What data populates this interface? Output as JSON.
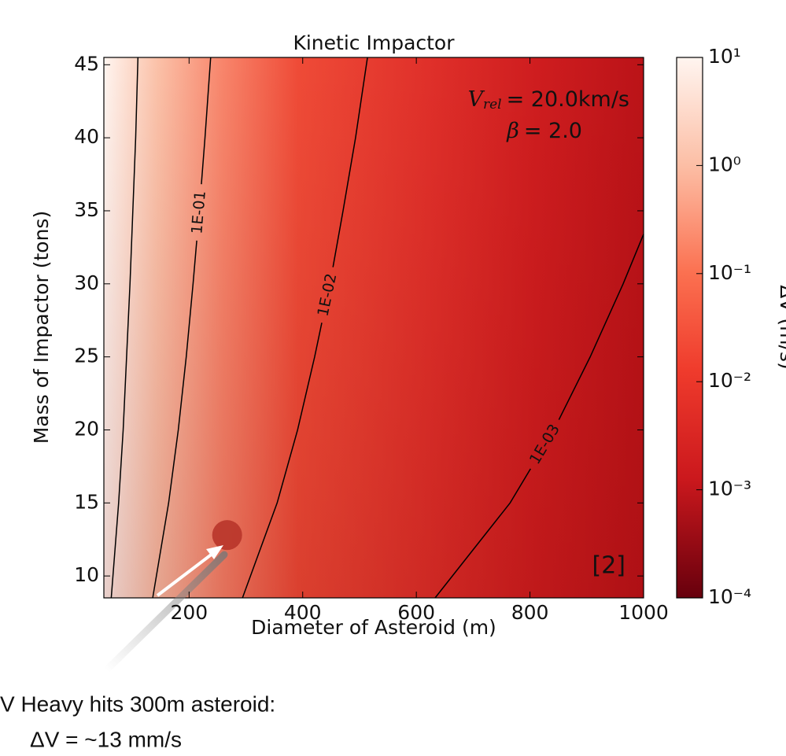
{
  "chart_data": {
    "type": "contour",
    "title": "Kinetic Impactor",
    "x_label": "Diameter of Asteroid (m)",
    "y_label": "Mass of Impactor (tons)",
    "colorbar_label": "ΔV (m/s)",
    "xlim": [
      50,
      1000
    ],
    "ylim": [
      8.5,
      45.5
    ],
    "xticks": [
      200,
      400,
      600,
      800,
      1000
    ],
    "yticks": [
      10,
      15,
      20,
      25,
      30,
      35,
      40,
      45
    ],
    "clim": [
      0.0001,
      10
    ],
    "log_colorbar": true,
    "cticks": [
      {
        "value": 10,
        "label": "10¹"
      },
      {
        "value": 1,
        "label": "10⁰"
      },
      {
        "value": 0.1,
        "label": "10⁻¹"
      },
      {
        "value": 0.01,
        "label": "10⁻²"
      },
      {
        "value": 0.001,
        "label": "10⁻³"
      },
      {
        "value": 0.0001,
        "label": "10⁻⁴"
      }
    ],
    "contours": [
      {
        "x": [
          63,
          76,
          84,
          90,
          96,
          101,
          106,
          110
        ],
        "y": [
          8.5,
          15,
          20,
          25,
          30,
          35,
          40,
          45.5
        ]
      },
      {
        "label": "1E-01",
        "x": [
          136,
          164,
          181,
          195,
          207,
          218,
          228,
          238
        ],
        "y": [
          8.5,
          15,
          20,
          25,
          30,
          35,
          40,
          45.5
        ]
      },
      {
        "label": "1E-02",
        "x": [
          294,
          355,
          391,
          421,
          448,
          471,
          493,
          514
        ],
        "y": [
          8.5,
          15,
          20,
          25,
          30,
          35,
          40,
          45.5
        ]
      },
      {
        "label": "1E-03",
        "x": [
          633,
          765,
          842,
          906,
          964,
          1000
        ],
        "y": [
          8.5,
          15,
          20,
          25,
          30,
          33.4
        ]
      }
    ],
    "annotations": [
      {
        "symbol": "V",
        "sub": "rel",
        "text": "=  20.0km/s"
      },
      {
        "symbol": "β",
        "text": "=  2.0"
      }
    ],
    "reference": "[2]",
    "marker": {
      "x": 267,
      "y": 12.8
    },
    "notes": [
      "V Heavy hits 300m asteroid:",
      "ΔV = ~13 mm/s"
    ]
  }
}
